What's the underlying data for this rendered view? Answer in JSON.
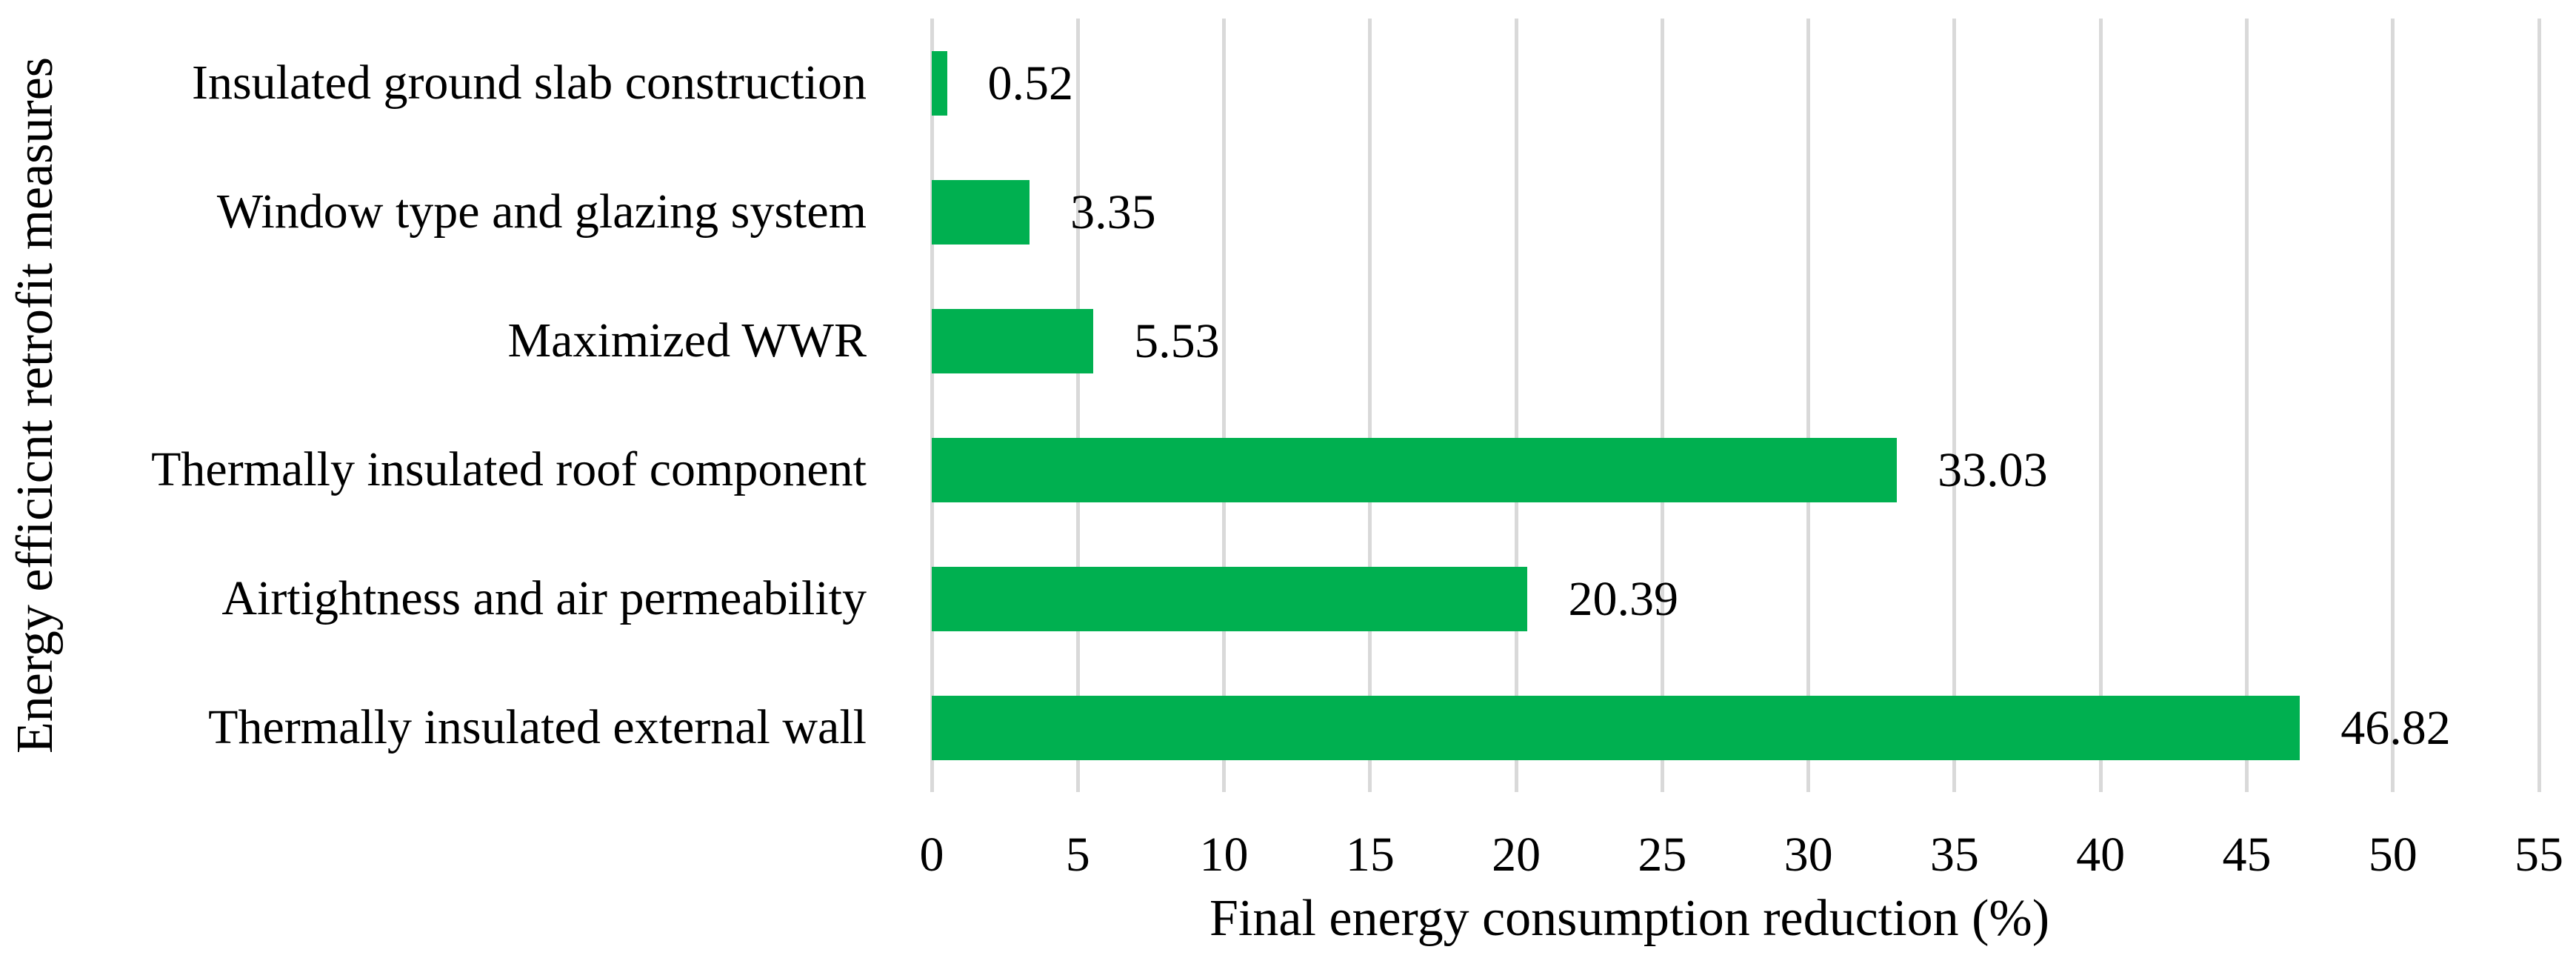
{
  "chart_data": {
    "type": "bar",
    "orientation": "horizontal",
    "title": "",
    "xlabel": "Final energy consumption reduction (%)",
    "ylabel": "Energy efficicnt retrofit measures",
    "categories": [
      "Insulated ground slab construction",
      "Window type and glazing system",
      "Maximized WWR",
      "Thermally insulated roof component",
      "Airtightness and air permeability",
      "Thermally insulated external wall"
    ],
    "values": [
      0.52,
      3.35,
      5.53,
      33.03,
      20.39,
      46.82
    ],
    "value_labels": [
      "0.52",
      "3.35",
      "5.53",
      "33.03",
      "20.39",
      "46.82"
    ],
    "xlim": [
      0,
      55
    ],
    "xticks": [
      0,
      5,
      10,
      15,
      20,
      25,
      30,
      35,
      40,
      45,
      50,
      55
    ],
    "grid": "vertical-gridlines",
    "legend": "none",
    "bar_color": "#00B050",
    "gridline_color": "#D9D9D9",
    "text_color": "#000000",
    "background_color": "#FFFFFF"
  }
}
